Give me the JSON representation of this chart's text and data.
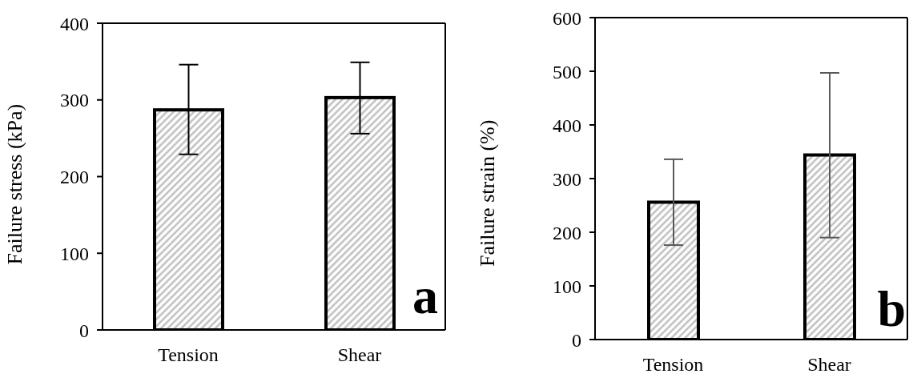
{
  "chart_data": [
    {
      "type": "bar",
      "categories": [
        "Tension",
        "Shear"
      ],
      "ylabel": "Failure stress (kPa)",
      "ylim": [
        0,
        400
      ],
      "yticks": [
        0,
        100,
        200,
        300,
        400
      ],
      "color": "#bfbfbf",
      "values": [
        287,
        303
      ],
      "errors": [
        [
          229,
          346
        ],
        [
          256,
          349
        ]
      ],
      "annotations": [
        "a"
      ]
    },
    {
      "type": "bar",
      "categories": [
        "Tension",
        "Shear"
      ],
      "ylabel": "Failure strain (%)",
      "ylim": [
        0,
        600
      ],
      "yticks": [
        0,
        100,
        200,
        300,
        400,
        500,
        600
      ],
      "color": "#bfbfbf",
      "values": [
        256,
        344
      ],
      "errors": [
        [
          176,
          336
        ],
        [
          190,
          497
        ]
      ],
      "annotations": [
        "b"
      ]
    }
  ]
}
